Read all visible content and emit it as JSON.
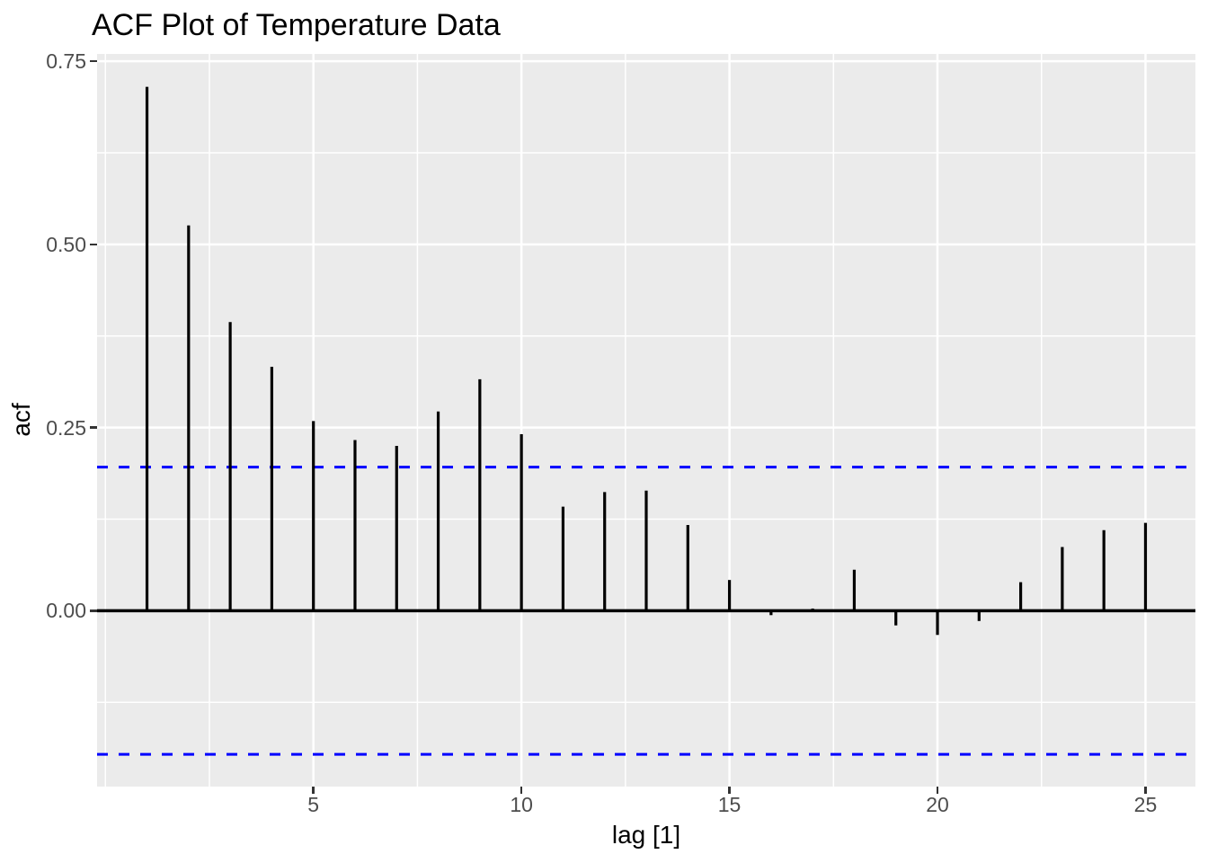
{
  "figure": {
    "background": "#FFFFFF"
  },
  "chart_data": {
    "type": "bar",
    "subtype": "acf-lollipop",
    "title": "ACF Plot of Temperature Data",
    "xlabel": "lag [1]",
    "ylabel": "acf",
    "x": [
      1,
      2,
      3,
      4,
      5,
      6,
      7,
      8,
      9,
      10,
      11,
      12,
      13,
      14,
      15,
      16,
      17,
      18,
      19,
      20,
      21,
      22,
      23,
      24,
      25
    ],
    "values": [
      0.715,
      0.526,
      0.394,
      0.333,
      0.259,
      0.233,
      0.225,
      0.272,
      0.316,
      0.241,
      0.142,
      0.162,
      0.164,
      0.117,
      0.042,
      -0.006,
      0.003,
      0.056,
      -0.02,
      -0.033,
      -0.014,
      0.039,
      0.087,
      0.11,
      0.12
    ],
    "confidence_bounds": {
      "upper": 0.196,
      "lower": -0.196,
      "style": "dashed",
      "color": "#0000FF"
    },
    "zero_line": 0,
    "xlim": [
      -0.2,
      26.2
    ],
    "ylim": [
      -0.24,
      0.76
    ],
    "x_ticks": [
      {
        "value": 5,
        "label": "5"
      },
      {
        "value": 10,
        "label": "10"
      },
      {
        "value": 15,
        "label": "15"
      },
      {
        "value": 20,
        "label": "20"
      },
      {
        "value": 25,
        "label": "25"
      }
    ],
    "y_ticks": [
      {
        "value": 0.0,
        "label": "0.00"
      },
      {
        "value": 0.25,
        "label": "0.25"
      },
      {
        "value": 0.5,
        "label": "0.50"
      },
      {
        "value": 0.75,
        "label": "0.75"
      }
    ],
    "x_minor_gridlines": [
      0,
      2.5,
      7.5,
      12.5,
      17.5,
      22.5
    ],
    "y_minor_gridlines": [
      -0.125,
      0.125,
      0.375,
      0.625
    ],
    "grid": true,
    "legend": "none",
    "style": {
      "bar_color": "#000000",
      "zero_line_color": "#000000",
      "panel_background": "#EBEBEB",
      "gridline_color": "#FFFFFF",
      "tick_label_color": "#4D4D4D",
      "tick_mark_color": "#333333",
      "title_color": "#000000"
    }
  }
}
